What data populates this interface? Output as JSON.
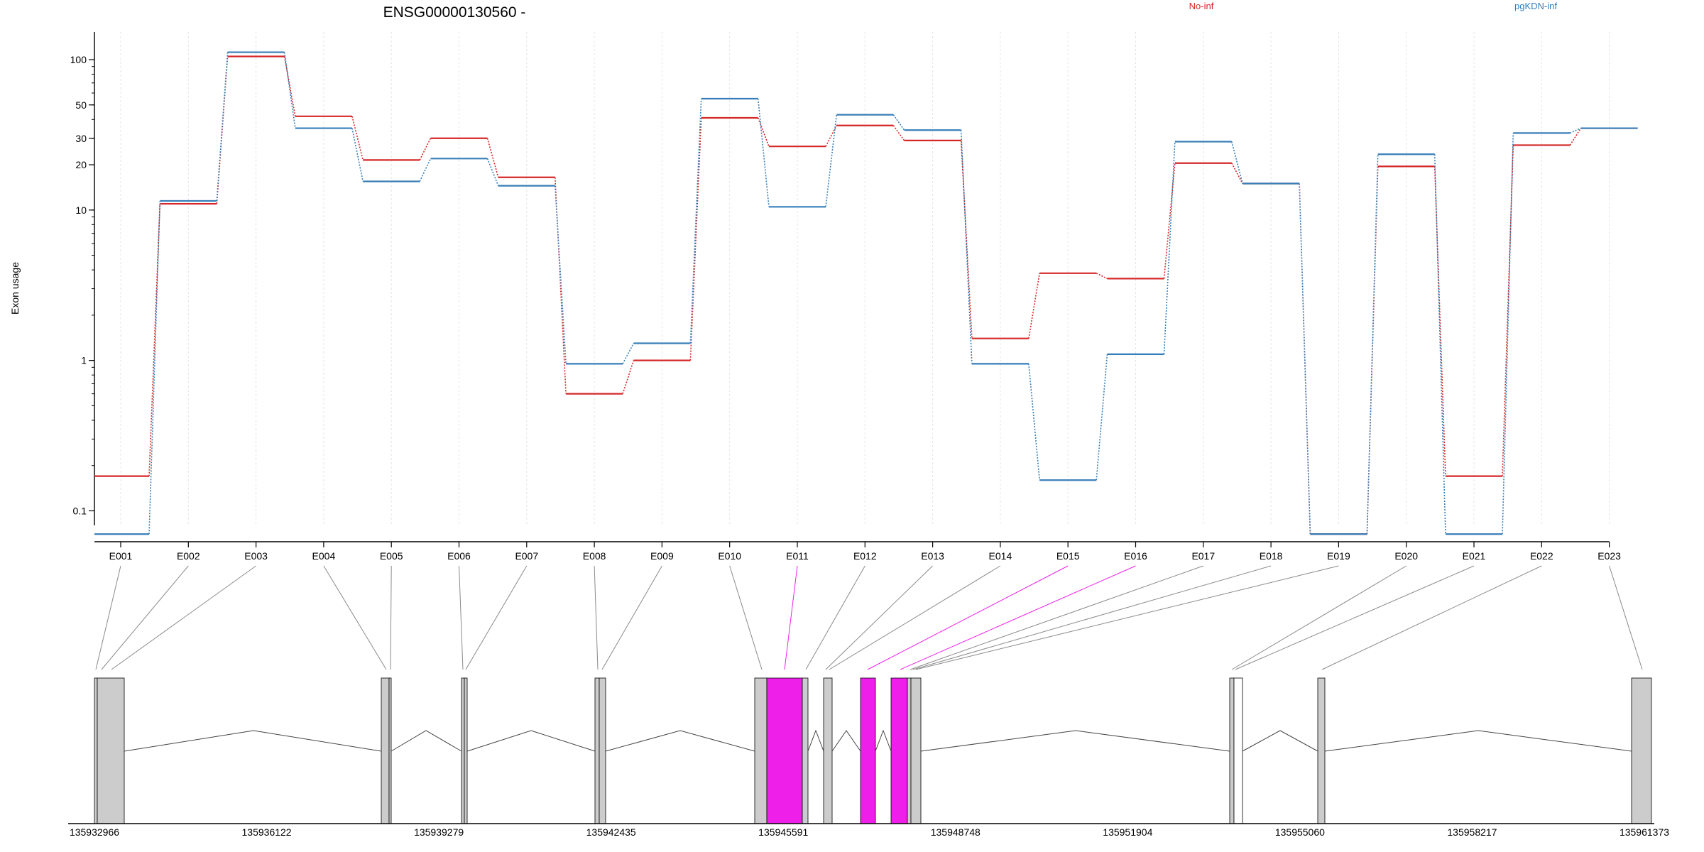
{
  "chart_data": {
    "type": "line",
    "title": "ENSG00000130560 -",
    "ylabel": "Exon usage",
    "y_scale": "log",
    "ylim": [
      0.08,
      120
    ],
    "y_ticks": [
      {
        "value": 0.1,
        "label": "0.1"
      },
      {
        "value": 1,
        "label": "1"
      },
      {
        "value": 10,
        "label": "10"
      },
      {
        "value": 20,
        "label": "20"
      },
      {
        "value": 30,
        "label": "30"
      },
      {
        "value": 50,
        "label": "50"
      },
      {
        "value": 100,
        "label": "100"
      }
    ],
    "grid": "vertical dotted",
    "legend_position": "top",
    "categories": [
      "E001",
      "E002",
      "E003",
      "E004",
      "E005",
      "E006",
      "E007",
      "E008",
      "E009",
      "E010",
      "E011",
      "E012",
      "E013",
      "E014",
      "E015",
      "E016",
      "E017",
      "E018",
      "E019",
      "E020",
      "E021",
      "E022",
      "E023"
    ],
    "series": [
      {
        "name": "No-inf",
        "color": "#d62728",
        "values": [
          0.17,
          11,
          105,
          42,
          21.5,
          30,
          16.5,
          0.6,
          1.0,
          41,
          26.5,
          36.5,
          29,
          1.4,
          3.8,
          3.5,
          20.5,
          15,
          0.07,
          19.5,
          0.17,
          27,
          35
        ]
      },
      {
        "name": "pgKDN-inf",
        "color": "#377eb8",
        "values": [
          0.07,
          11.5,
          112,
          35,
          15.5,
          22,
          14.5,
          0.95,
          1.3,
          55,
          10.5,
          43,
          34,
          0.95,
          0.16,
          1.1,
          28.5,
          15,
          0.07,
          23.5,
          0.07,
          32.5,
          35
        ]
      }
    ],
    "genome_axis": {
      "ticks": [
        "135932966",
        "135936122",
        "135939279",
        "135942435",
        "135945591",
        "135948748",
        "135951904",
        "135955060",
        "135958217",
        "135961373"
      ]
    },
    "highlight_color": "#ee1fe8",
    "exon_fill": "#cccccc"
  }
}
